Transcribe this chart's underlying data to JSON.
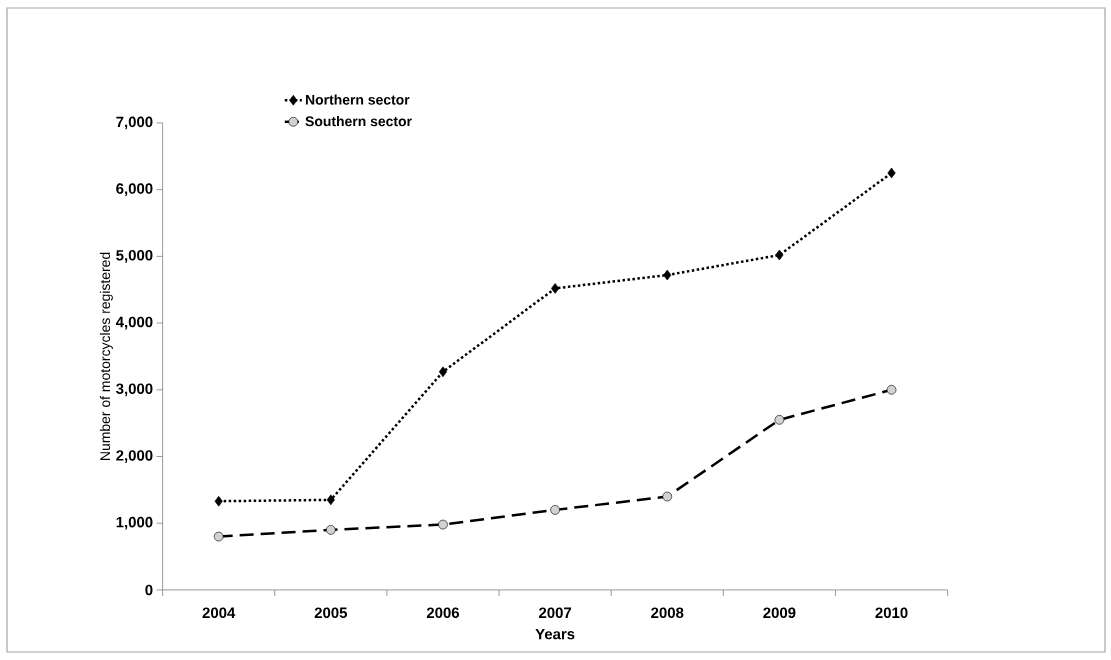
{
  "chart_data": {
    "type": "line",
    "xlabel": "Years",
    "ylabel": "Number of motorcycles registered",
    "categories": [
      "2004",
      "2005",
      "2006",
      "2007",
      "2008",
      "2009",
      "2010"
    ],
    "series": [
      {
        "name": "Northern sector",
        "color": "#000000",
        "marker": "diamond",
        "line_style": "dotted",
        "values": [
          1330,
          1350,
          3270,
          4520,
          4720,
          5020,
          6250
        ]
      },
      {
        "name": "Southern sector",
        "color": "#000000",
        "marker": "circle",
        "line_style": "dashed",
        "values": [
          800,
          900,
          980,
          1200,
          1400,
          2550,
          3000
        ]
      }
    ],
    "ylim": [
      0,
      7000
    ],
    "yticks": [
      {
        "value": 0,
        "label": "0"
      },
      {
        "value": 1000,
        "label": "1,000"
      },
      {
        "value": 2000,
        "label": "2,000"
      },
      {
        "value": 3000,
        "label": "3,000"
      },
      {
        "value": 4000,
        "label": "4,000"
      },
      {
        "value": 5000,
        "label": "5,000"
      },
      {
        "value": 6000,
        "label": "6,000"
      },
      {
        "value": 7000,
        "label": "7,000"
      }
    ],
    "grid": false,
    "legend": "top left"
  }
}
